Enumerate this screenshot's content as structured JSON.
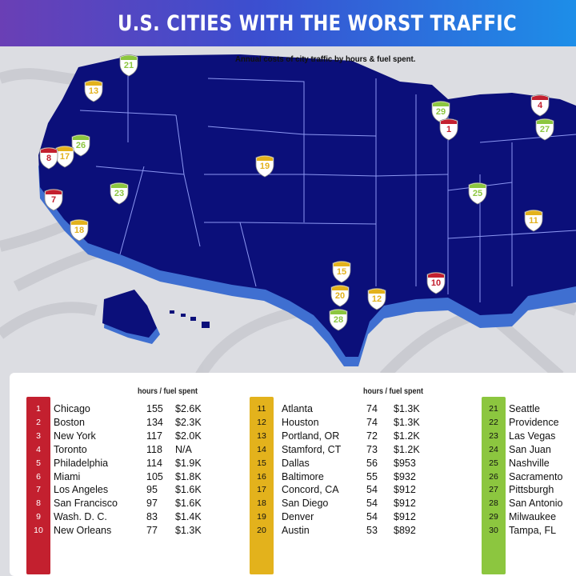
{
  "header": {
    "title": "U.S. CITIES WITH THE WORST TRAFFIC"
  },
  "map": {
    "subtitle": "Annual costs of city traffic by hours & fuel spent.",
    "colors": {
      "land": "#0b0f7a",
      "shadow": "#3f6fd1",
      "borders": "#9aa6ff",
      "background": "#dcdde2"
    },
    "markers": [
      {
        "label": "21",
        "color": "green"
      },
      {
        "label": "13",
        "color": "yellow"
      },
      {
        "label": "26",
        "color": "green"
      },
      {
        "label": "17",
        "color": "yellow"
      },
      {
        "label": "8",
        "color": "red"
      },
      {
        "label": "23",
        "color": "green"
      },
      {
        "label": "7",
        "color": "red"
      },
      {
        "label": "18",
        "color": "yellow"
      },
      {
        "label": "19",
        "color": "yellow"
      },
      {
        "label": "29",
        "color": "green"
      },
      {
        "label": "1",
        "color": "red"
      },
      {
        "label": "4",
        "color": "red"
      },
      {
        "label": "27",
        "color": "green"
      },
      {
        "label": "25",
        "color": "green"
      },
      {
        "label": "11",
        "color": "yellow"
      },
      {
        "label": "15",
        "color": "yellow"
      },
      {
        "label": "20",
        "color": "yellow"
      },
      {
        "label": "12",
        "color": "yellow"
      },
      {
        "label": "28",
        "color": "green"
      },
      {
        "label": "10",
        "color": "red"
      }
    ]
  },
  "table": {
    "column_header": "hours / fuel spent",
    "colors": {
      "red": "#c3202f",
      "yellow": "#e3b21c",
      "green": "#8cc63f"
    },
    "group1": [
      {
        "rank": "1",
        "city": "Chicago",
        "hours": "155",
        "cost": "$2.6K"
      },
      {
        "rank": "2",
        "city": "Boston",
        "hours": "134",
        "cost": "$2.3K"
      },
      {
        "rank": "3",
        "city": "New York",
        "hours": "117",
        "cost": "$2.0K"
      },
      {
        "rank": "4",
        "city": "Toronto",
        "hours": "118",
        "cost": "N/A"
      },
      {
        "rank": "5",
        "city": "Philadelphia",
        "hours": "114",
        "cost": "$1.9K"
      },
      {
        "rank": "6",
        "city": "Miami",
        "hours": "105",
        "cost": "$1.8K"
      },
      {
        "rank": "7",
        "city": "Los Angeles",
        "hours": "95",
        "cost": "$1.6K"
      },
      {
        "rank": "8",
        "city": "San Francisco",
        "hours": "97",
        "cost": "$1.6K"
      },
      {
        "rank": "9",
        "city": "Wash. D. C.",
        "hours": "83",
        "cost": "$1.4K"
      },
      {
        "rank": "10",
        "city": "New Orleans",
        "hours": "77",
        "cost": "$1.3K"
      }
    ],
    "group2": [
      {
        "rank": "11",
        "city": "Atlanta",
        "hours": "74",
        "cost": "$1.3K"
      },
      {
        "rank": "12",
        "city": "Houston",
        "hours": "74",
        "cost": "$1.3K"
      },
      {
        "rank": "13",
        "city": "Portland, OR",
        "hours": "72",
        "cost": "$1.2K"
      },
      {
        "rank": "14",
        "city": "Stamford, CT",
        "hours": "73",
        "cost": "$1.2K"
      },
      {
        "rank": "15",
        "city": "Dallas",
        "hours": "56",
        "cost": "$953"
      },
      {
        "rank": "16",
        "city": "Baltimore",
        "hours": "55",
        "cost": "$932"
      },
      {
        "rank": "17",
        "city": "Concord, CA",
        "hours": "54",
        "cost": "$912"
      },
      {
        "rank": "18",
        "city": "San Diego",
        "hours": "54",
        "cost": "$912"
      },
      {
        "rank": "19",
        "city": "Denver",
        "hours": "54",
        "cost": "$912"
      },
      {
        "rank": "20",
        "city": "Austin",
        "hours": "53",
        "cost": "$892"
      }
    ],
    "group3": [
      {
        "rank": "21",
        "city": "Seattle"
      },
      {
        "rank": "22",
        "city": "Providence"
      },
      {
        "rank": "23",
        "city": "Las Vegas"
      },
      {
        "rank": "24",
        "city": "San Juan"
      },
      {
        "rank": "25",
        "city": "Nashville"
      },
      {
        "rank": "26",
        "city": "Sacramento"
      },
      {
        "rank": "27",
        "city": "Pittsburgh"
      },
      {
        "rank": "28",
        "city": "San Antonio"
      },
      {
        "rank": "29",
        "city": "Milwaukee"
      },
      {
        "rank": "30",
        "city": "Tampa, FL"
      }
    ]
  }
}
